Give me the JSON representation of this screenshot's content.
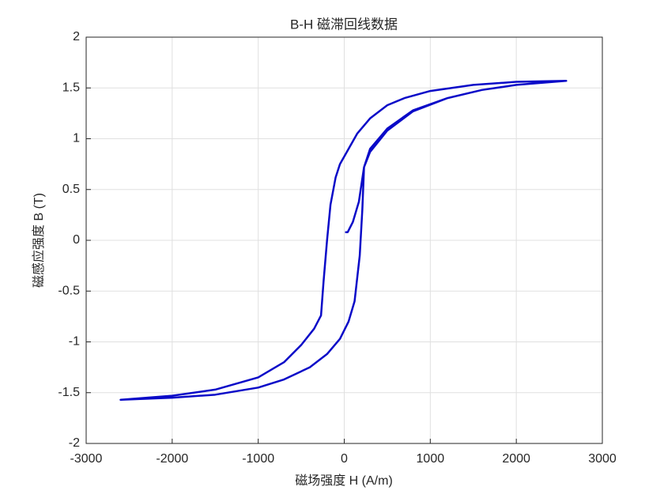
{
  "chart_data": {
    "type": "line",
    "title": "B-H 磁滞回线数据",
    "x_label": "磁场强度 H (A/m)",
    "y_label": "磁感应强度 B (T)",
    "xlim": [
      -3000,
      3000
    ],
    "xticks": [
      -3000,
      -2000,
      -1000,
      0,
      1000,
      2000,
      3000
    ],
    "ylim": [
      -2,
      2
    ],
    "yticks": [
      -2,
      -1.5,
      -1,
      -0.5,
      0,
      0.5,
      1,
      1.5,
      2
    ],
    "grid": true,
    "series": [
      {
        "color": "#0a0ac8",
        "x": [
          10,
          40,
          100,
          170,
          230,
          300,
          500,
          800,
          1200,
          1600,
          2000,
          2580,
          2000,
          1500,
          1000,
          700,
          500,
          300,
          150,
          50,
          -50,
          -100,
          -160,
          -200,
          -240,
          -270,
          -350,
          -500,
          -700,
          -1000,
          -1500,
          -2000,
          -2600,
          -2000,
          -1500,
          -1000,
          -700,
          -400,
          -200,
          -50,
          50,
          120,
          180,
          210,
          230,
          300,
          500,
          800,
          1200,
          1600,
          2000,
          2580
        ],
        "values": [
          0.08,
          0.08,
          0.18,
          0.38,
          0.72,
          0.9,
          1.1,
          1.28,
          1.4,
          1.48,
          1.53,
          1.57,
          1.56,
          1.53,
          1.47,
          1.4,
          1.33,
          1.2,
          1.05,
          0.9,
          0.75,
          0.62,
          0.35,
          0,
          -0.4,
          -0.74,
          -0.87,
          -1.03,
          -1.2,
          -1.35,
          -1.47,
          -1.53,
          -1.57,
          -1.55,
          -1.52,
          -1.45,
          -1.37,
          -1.25,
          -1.12,
          -0.97,
          -0.8,
          -0.6,
          -0.15,
          0.3,
          0.72,
          0.87,
          1.08,
          1.27,
          1.4,
          1.48,
          1.53,
          1.57
        ]
      }
    ]
  }
}
